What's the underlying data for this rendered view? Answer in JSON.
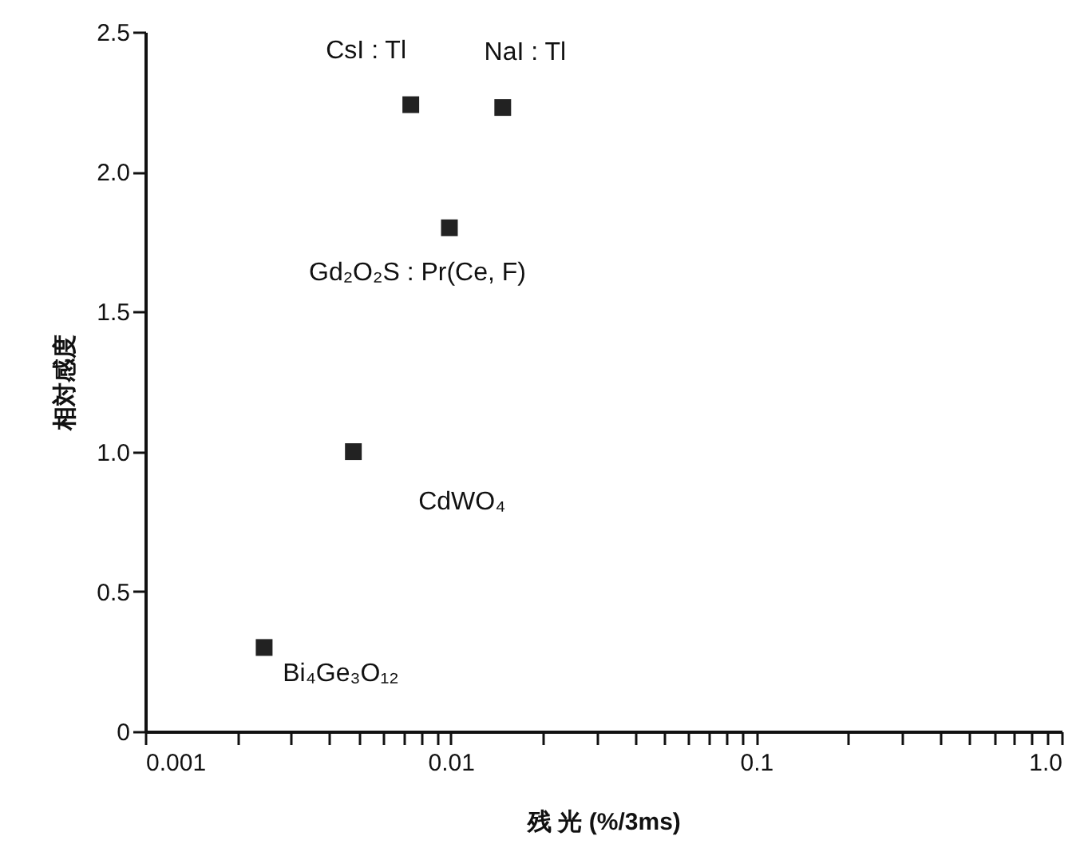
{
  "chart_data": {
    "type": "scatter",
    "xlabel": "残 光 (%/3ms)",
    "ylabel": "相対感度",
    "log": "x",
    "marker": "square",
    "grid": false,
    "x": [
      0.0074,
      0.0148,
      0.0099,
      0.0048,
      0.00245
    ],
    "series": [
      {
        "color": "#222222",
        "values": [
          2.24,
          2.23,
          1.8,
          1.0,
          0.3
        ]
      }
    ],
    "xlim": [
      0.001,
      1
    ],
    "xticks": [
      0.001,
      {
        "value": 0.002,
        "label": null
      },
      {
        "value": 0.003,
        "label": null
      },
      {
        "value": 0.004,
        "label": null
      },
      {
        "value": 0.005,
        "label": null
      },
      {
        "value": 0.006,
        "label": null
      },
      {
        "value": 0.007,
        "label": null
      },
      {
        "value": 0.008,
        "label": null
      },
      {
        "value": 0.009,
        "label": null
      },
      0.01,
      {
        "value": 0.02,
        "label": null
      },
      {
        "value": 0.03,
        "label": null
      },
      {
        "value": 0.04,
        "label": null
      },
      {
        "value": 0.05,
        "label": null
      },
      {
        "value": 0.06,
        "label": null
      },
      {
        "value": 0.07,
        "label": null
      },
      {
        "value": 0.08,
        "label": null
      },
      {
        "value": 0.09,
        "label": null
      },
      0.1,
      {
        "value": 0.2,
        "label": null
      },
      {
        "value": 0.3,
        "label": null
      },
      {
        "value": 0.4,
        "label": null
      },
      {
        "value": 0.5,
        "label": null
      },
      {
        "value": 0.6,
        "label": null
      },
      {
        "value": 0.7,
        "label": null
      },
      {
        "value": 0.8,
        "label": null
      },
      {
        "value": 0.9,
        "label": null
      },
      {
        "value": 1,
        "label": "1.0"
      }
    ],
    "ylim": [
      0,
      2.5
    ],
    "yticks": [
      0,
      0.5,
      {
        "value": 1,
        "label": "1.0"
      },
      1.5,
      {
        "value": 2,
        "label": "2.0"
      },
      2.5
    ],
    "annotations": [
      {
        "text": "CsI : Tl",
        "x": 0.0074,
        "y": 2.24
      },
      {
        "text": "NaI : Tl",
        "x": 0.0148,
        "y": 2.23
      },
      {
        "text": "Gd₂O₂S : Pr(Ce, F)",
        "x": 0.0099,
        "y": 1.8
      },
      {
        "text": "CdWO₄",
        "x": 0.0048,
        "y": 1.0
      },
      {
        "text": "Bi₄Ge₃O₁₂",
        "x": 0.00245,
        "y": 0.3
      }
    ]
  }
}
